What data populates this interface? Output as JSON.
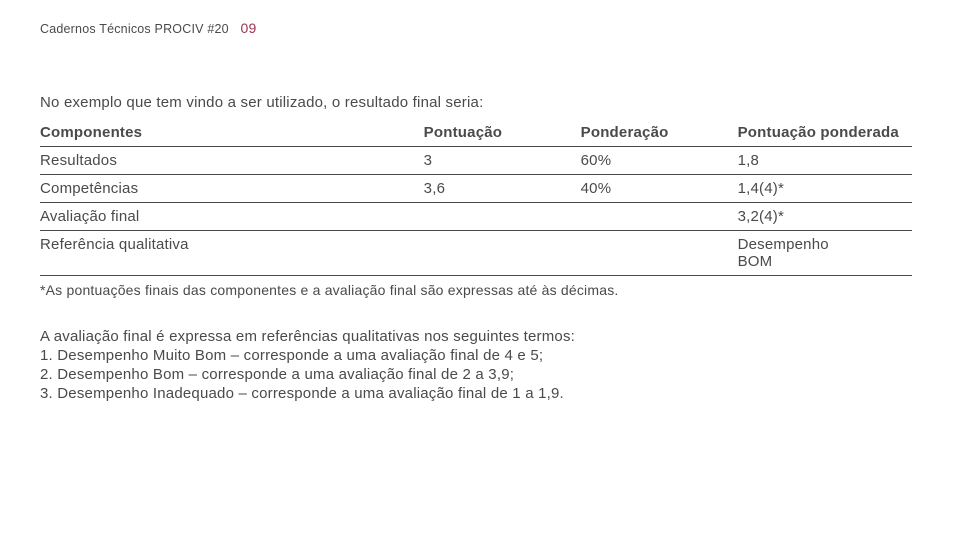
{
  "header": {
    "series": "Cadernos Técnicos PROCIV #20",
    "page_number": "09"
  },
  "intro": "No exemplo que tem vindo a ser utilizado, o resultado final seria:",
  "table": {
    "headers": {
      "c1": "Componentes",
      "c2": "Pontuação",
      "c3": "Ponderação",
      "c4": "Pontuação ponderada"
    },
    "rows": [
      {
        "c1": "Resultados",
        "c2": "3",
        "c3": "60%",
        "c4": "1,8"
      },
      {
        "c1": "Competências",
        "c2": "3,6",
        "c3": "40%",
        "c4": "1,4(4)*"
      }
    ],
    "final_row": {
      "c1": "Avaliação final",
      "c4": "3,2(4)*"
    },
    "ref_row": {
      "c1": "Referência qualitativa",
      "c4a": "Desempenho",
      "c4b": "BOM"
    }
  },
  "footnote": "*As pontuações finais das componentes e a avaliação final são expressas até às décimas.",
  "terms": {
    "intro": "A avaliação final é expressa em referências qualitativas nos seguintes termos:",
    "l1": "1. Desempenho Muito Bom – corresponde a uma avaliação final de 4 e 5;",
    "l2": "2. Desempenho Bom – corresponde a uma avaliação final de 2 a 3,9;",
    "l3": "3. Desempenho Inadequado – corresponde a uma avaliação final de 1 a 1,9."
  }
}
